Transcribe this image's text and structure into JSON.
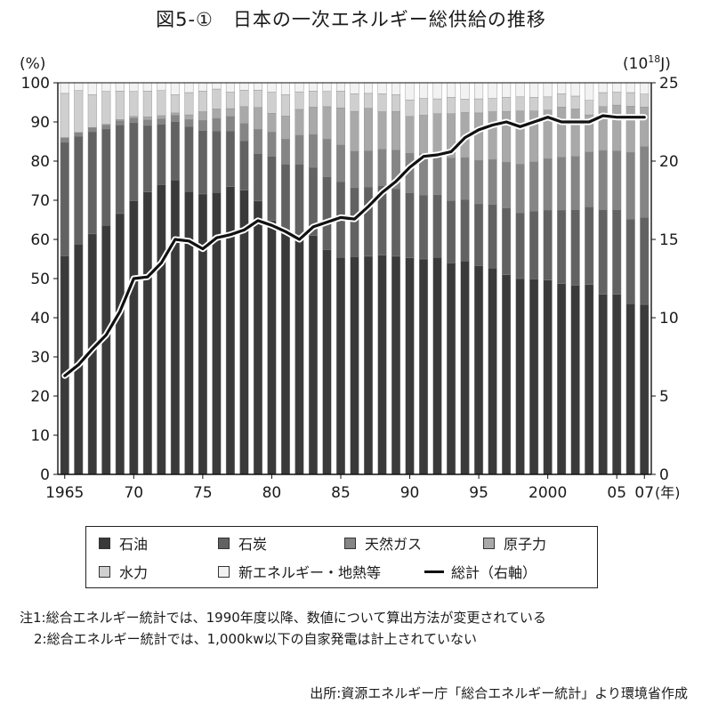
{
  "title": "図5-①　日本の一次エネルギー総供給の推移",
  "chart_data": {
    "type": "bar",
    "stacked": true,
    "percent_stacked": true,
    "title": "図5-①　日本の一次エネルギー総供給の推移",
    "x": [
      1965,
      1966,
      1967,
      1968,
      1969,
      1970,
      1971,
      1972,
      1973,
      1974,
      1975,
      1976,
      1977,
      1978,
      1979,
      1980,
      1981,
      1982,
      1983,
      1984,
      1985,
      1986,
      1987,
      1988,
      1989,
      1990,
      1991,
      1992,
      1993,
      1994,
      1995,
      1996,
      1997,
      1998,
      1999,
      2000,
      2001,
      2002,
      2003,
      2004,
      2005,
      2006,
      2007
    ],
    "x_tick_labels": [
      {
        "year": 1965,
        "label": "1965"
      },
      {
        "year": 1970,
        "label": "70"
      },
      {
        "year": 1975,
        "label": "75"
      },
      {
        "year": 1980,
        "label": "80"
      },
      {
        "year": 1985,
        "label": "85"
      },
      {
        "year": 1990,
        "label": "90"
      },
      {
        "year": 1995,
        "label": "95"
      },
      {
        "year": 2000,
        "label": "2000"
      },
      {
        "year": 2005,
        "label": "05"
      },
      {
        "year": 2007,
        "label": "07"
      }
    ],
    "x_unit": "(年)",
    "y_left": {
      "unit": "(%)",
      "ylim": [
        0,
        100
      ],
      "ticks": [
        0,
        10,
        20,
        30,
        40,
        50,
        60,
        70,
        80,
        90,
        100
      ]
    },
    "y_right": {
      "unit": "(10",
      "unit_sup": "18",
      "unit_tail": "J)",
      "ylim": [
        0,
        25
      ],
      "ticks": [
        0,
        5,
        10,
        15,
        20,
        25
      ]
    },
    "series": [
      {
        "name": "石油",
        "color": "#3a3a3a",
        "values": [
          55.8,
          58.8,
          61.4,
          63.6,
          66.6,
          69.9,
          72.1,
          74.0,
          75.2,
          72.2,
          71.6,
          72.0,
          73.5,
          72.6,
          69.8,
          64.8,
          62.0,
          59.8,
          61.0,
          57.4,
          55.4,
          55.6,
          55.7,
          56.0,
          55.7,
          55.3,
          55.0,
          55.4,
          54.0,
          54.5,
          53.3,
          52.7,
          51.0,
          50.0,
          49.9,
          49.6,
          48.7,
          48.3,
          48.5,
          46.0,
          46.0,
          43.6,
          43.4
        ]
      },
      {
        "name": "石炭",
        "color": "#626262",
        "values": [
          29.0,
          27.5,
          26.1,
          24.6,
          22.6,
          19.9,
          17.0,
          15.4,
          14.9,
          16.6,
          16.2,
          15.7,
          14.2,
          12.6,
          12.1,
          16.4,
          17.2,
          19.4,
          17.4,
          18.6,
          19.3,
          17.6,
          17.7,
          17.7,
          17.2,
          16.6,
          16.3,
          16.0,
          15.9,
          15.7,
          15.8,
          16.2,
          17.0,
          16.8,
          17.3,
          17.9,
          18.8,
          19.3,
          19.8,
          21.6,
          21.6,
          21.6,
          22.2
        ]
      },
      {
        "name": "天然ガス",
        "color": "#858585",
        "values": [
          1.2,
          1.0,
          1.0,
          1.0,
          1.1,
          1.2,
          1.4,
          1.4,
          1.6,
          1.8,
          2.6,
          3.2,
          3.7,
          4.4,
          6.2,
          6.2,
          6.4,
          7.4,
          8.4,
          9.6,
          9.4,
          9.3,
          9.2,
          9.3,
          9.9,
          10.1,
          10.6,
          10.8,
          10.9,
          10.7,
          11.1,
          11.5,
          11.7,
          12.4,
          12.6,
          13.1,
          13.5,
          13.6,
          14.0,
          15.1,
          15.0,
          17.0,
          18.1
        ]
      },
      {
        "name": "原子力",
        "color": "#a9a9a9",
        "values": [
          0.0,
          0.0,
          0.1,
          0.2,
          0.3,
          0.4,
          0.8,
          0.8,
          0.6,
          1.2,
          2.2,
          2.4,
          2.0,
          4.3,
          5.6,
          4.8,
          5.9,
          6.6,
          7.0,
          8.3,
          9.5,
          10.2,
          10.9,
          9.6,
          9.9,
          9.4,
          9.8,
          9.9,
          11.3,
          11.5,
          12.1,
          12.2,
          13.0,
          13.6,
          13.0,
          12.4,
          12.8,
          12.1,
          9.5,
          11.2,
          11.7,
          11.8,
          10.1
        ]
      },
      {
        "name": "水力",
        "color": "#cfcfcf",
        "values": [
          11.3,
          10.7,
          8.4,
          8.4,
          7.3,
          6.4,
          6.6,
          6.4,
          4.7,
          5.7,
          5.3,
          5.1,
          4.2,
          4.2,
          4.4,
          5.4,
          5.5,
          4.5,
          4.1,
          3.9,
          4.3,
          4.5,
          3.8,
          4.6,
          4.3,
          4.2,
          4.3,
          3.8,
          4.2,
          3.4,
          3.6,
          3.4,
          3.6,
          3.6,
          3.5,
          3.4,
          3.4,
          3.3,
          3.7,
          3.6,
          3.3,
          3.5,
          3.3
        ]
      },
      {
        "name": "新エネルギー・地熱等",
        "color": "#f2f2f2",
        "values": [
          2.7,
          2.0,
          3.0,
          2.2,
          2.1,
          2.2,
          2.1,
          2.0,
          3.0,
          2.5,
          2.1,
          1.6,
          2.4,
          1.9,
          1.9,
          2.4,
          3.0,
          2.3,
          2.1,
          2.2,
          2.1,
          2.8,
          2.7,
          2.8,
          3.0,
          4.4,
          4.0,
          4.1,
          3.7,
          4.2,
          4.1,
          4.0,
          3.7,
          3.6,
          3.7,
          3.6,
          2.8,
          3.4,
          4.5,
          2.5,
          2.4,
          2.5,
          2.9
        ]
      }
    ],
    "line_series": {
      "name": "総計（右軸）",
      "axis": "right",
      "values": [
        6.3,
        7.0,
        8.0,
        8.9,
        10.4,
        12.5,
        12.6,
        13.5,
        15.0,
        14.9,
        14.4,
        15.1,
        15.3,
        15.6,
        16.2,
        15.9,
        15.5,
        15.0,
        15.8,
        16.1,
        16.4,
        16.3,
        17.1,
        18.0,
        18.7,
        19.6,
        20.3,
        20.4,
        20.6,
        21.5,
        22.0,
        22.3,
        22.5,
        22.2,
        22.5,
        22.8,
        22.5,
        22.5,
        22.5,
        22.9,
        22.8,
        22.8,
        22.8
      ]
    }
  },
  "legend": {
    "items": [
      {
        "label": "石油",
        "color": "#3a3a3a"
      },
      {
        "label": "石炭",
        "color": "#626262"
      },
      {
        "label": "天然ガス",
        "color": "#858585"
      },
      {
        "label": "原子力",
        "color": "#a9a9a9"
      },
      {
        "label": "水力",
        "color": "#cfcfcf"
      },
      {
        "label": "新エネルギー・地熱等",
        "color": "#f2f2f2"
      }
    ],
    "line_label": "総計（右軸）"
  },
  "notes": {
    "n1_label": "注1:",
    "n1_text": "総合エネルギー統計では、1990年度以降、数値について算出方法が変更されている",
    "n2_label": "2:",
    "n2_text": "総合エネルギー統計では、1,000kw以下の自家発電は計上されていない"
  },
  "source": "出所:資源エネルギー庁「総合エネルギー統計」より環境省作成"
}
